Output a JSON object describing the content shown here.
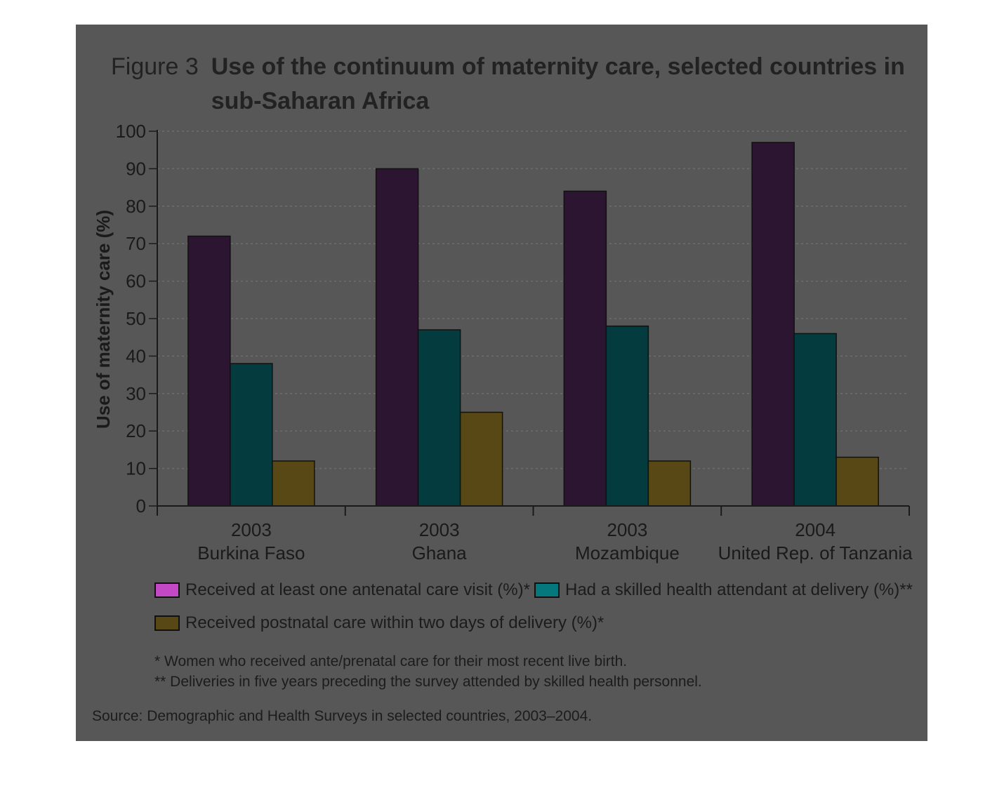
{
  "figure": {
    "number": "Figure 3",
    "title": "Use of the continuum of maternity care, selected countries in sub-Saharan Africa"
  },
  "chart_data": {
    "type": "bar",
    "ylabel": "Use of maternity care (%)",
    "ylim": [
      0,
      100
    ],
    "yticks": [
      0,
      10,
      20,
      30,
      40,
      50,
      60,
      70,
      80,
      90,
      100
    ],
    "grid": true,
    "legend_position": "bottom",
    "categories": [
      {
        "year": "2003",
        "country": "Burkina Faso"
      },
      {
        "year": "2003",
        "country": "Ghana"
      },
      {
        "year": "2003",
        "country": "Mozambique"
      },
      {
        "year": "2004",
        "country": "United Rep. of Tanzania"
      }
    ],
    "series": [
      {
        "name": "Received at least one antenatal care visit (%)*",
        "color": "#2c1530",
        "legend_color": "#c248c6",
        "values": [
          72,
          90,
          84,
          97
        ]
      },
      {
        "name": "Had a skilled health attendant at delivery (%)**",
        "color": "#033b3e",
        "legend_color": "#05787d",
        "values": [
          38,
          47,
          48,
          46
        ]
      },
      {
        "name": "Received postnatal care within two days of delivery (%)*",
        "color": "#574815",
        "legend_color": "#574815",
        "values": [
          12,
          25,
          12,
          13
        ]
      }
    ]
  },
  "notes": [
    "* Women who received ante/prenatal care for their most recent live birth.",
    "** Deliveries in five years preceding the survey attended by skilled health personnel."
  ],
  "source": "Source: Demographic and Health Surveys in selected countries, 2003–2004."
}
